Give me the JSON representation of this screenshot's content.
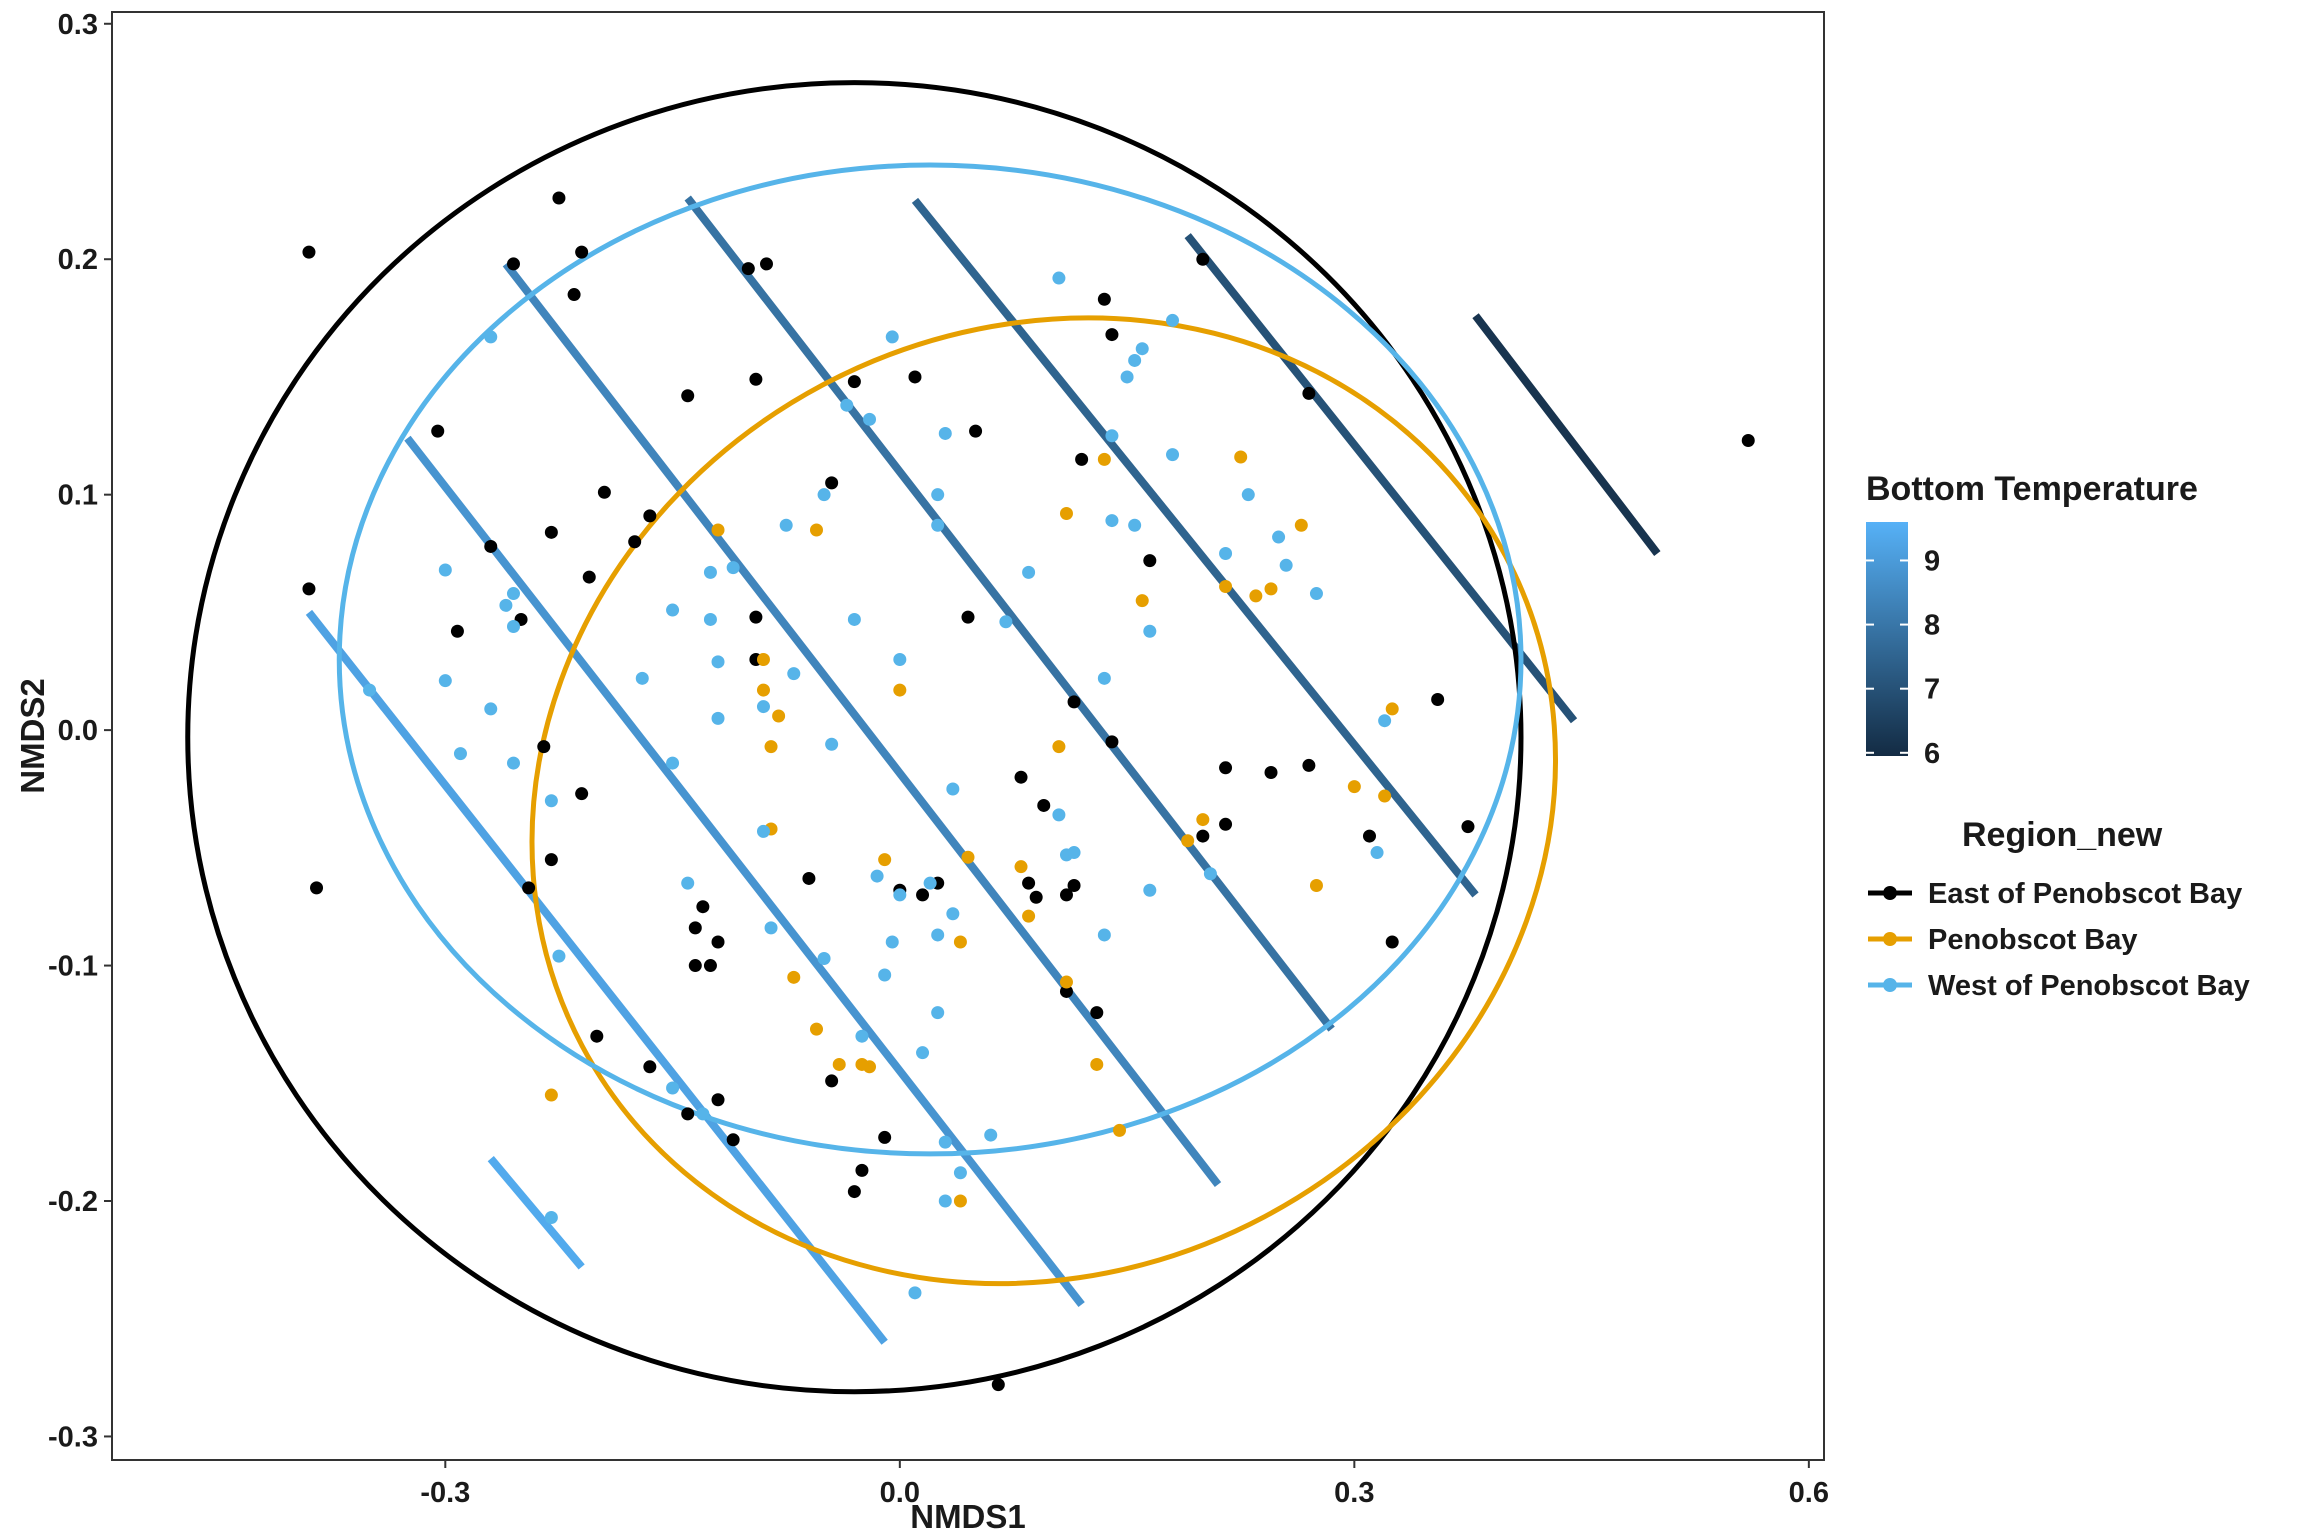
{
  "chart_data": {
    "type": "scatter",
    "xlabel": "NMDS1",
    "ylabel": "NMDS2",
    "xlim": [
      -0.52,
      0.61
    ],
    "ylim": [
      -0.31,
      0.305
    ],
    "x_ticks": [
      -0.3,
      0.0,
      0.3,
      0.6
    ],
    "x_tick_labels": [
      "-0.3",
      "0.0",
      "0.3",
      "0.6"
    ],
    "y_ticks": [
      -0.3,
      -0.2,
      -0.1,
      0.0,
      0.1,
      0.2,
      0.3
    ],
    "y_tick_labels": [
      "-0.3",
      "-0.2",
      "-0.1",
      "0.0",
      "0.1",
      "0.2",
      "0.3"
    ],
    "grid": false,
    "legend_position": "right",
    "series": [
      {
        "name": "East of Penobscot Bay",
        "color": "#000000",
        "points": [
          [
            -0.39,
            0.203
          ],
          [
            -0.225,
            0.226
          ],
          [
            -0.21,
            0.203
          ],
          [
            -0.255,
            0.198
          ],
          [
            -0.215,
            0.185
          ],
          [
            -0.1,
            0.196
          ],
          [
            -0.088,
            0.198
          ],
          [
            -0.14,
            0.142
          ],
          [
            -0.095,
            0.149
          ],
          [
            -0.03,
            0.148
          ],
          [
            0.01,
            0.15
          ],
          [
            0.05,
            0.127
          ],
          [
            0.12,
            0.115
          ],
          [
            0.135,
            0.183
          ],
          [
            0.14,
            0.168
          ],
          [
            0.2,
            0.2
          ],
          [
            0.27,
            0.143
          ],
          [
            0.56,
            0.123
          ],
          [
            -0.305,
            0.127
          ],
          [
            -0.195,
            0.101
          ],
          [
            -0.23,
            0.084
          ],
          [
            -0.165,
            0.091
          ],
          [
            -0.175,
            0.08
          ],
          [
            -0.27,
            0.078
          ],
          [
            -0.205,
            0.065
          ],
          [
            -0.25,
            0.047
          ],
          [
            -0.39,
            0.06
          ],
          [
            -0.292,
            0.042
          ],
          [
            -0.045,
            0.105
          ],
          [
            -0.095,
            0.048
          ],
          [
            0.045,
            0.048
          ],
          [
            0.165,
            0.072
          ],
          [
            -0.095,
            0.03
          ],
          [
            0.115,
            0.012
          ],
          [
            0.14,
            -0.005
          ],
          [
            0.355,
            0.013
          ],
          [
            -0.235,
            -0.007
          ],
          [
            -0.21,
            -0.027
          ],
          [
            -0.23,
            -0.055
          ],
          [
            -0.245,
            -0.067
          ],
          [
            -0.385,
            -0.067
          ],
          [
            0.08,
            -0.02
          ],
          [
            0.095,
            -0.032
          ],
          [
            0.2,
            -0.045
          ],
          [
            0.215,
            -0.04
          ],
          [
            0.215,
            -0.016
          ],
          [
            0.245,
            -0.018
          ],
          [
            0.27,
            -0.015
          ],
          [
            0.31,
            -0.045
          ],
          [
            0.375,
            -0.041
          ],
          [
            -0.06,
            -0.063
          ],
          [
            0.0,
            -0.068
          ],
          [
            0.015,
            -0.07
          ],
          [
            0.025,
            -0.065
          ],
          [
            0.085,
            -0.065
          ],
          [
            0.09,
            -0.071
          ],
          [
            0.11,
            -0.07
          ],
          [
            0.115,
            -0.066
          ],
          [
            -0.13,
            -0.075
          ],
          [
            -0.135,
            -0.084
          ],
          [
            -0.12,
            -0.09
          ],
          [
            -0.125,
            -0.1
          ],
          [
            -0.135,
            -0.1
          ],
          [
            0.11,
            -0.111
          ],
          [
            0.13,
            -0.12
          ],
          [
            0.325,
            -0.09
          ],
          [
            -0.2,
            -0.13
          ],
          [
            -0.165,
            -0.143
          ],
          [
            -0.14,
            -0.163
          ],
          [
            -0.12,
            -0.157
          ],
          [
            -0.11,
            -0.174
          ],
          [
            -0.045,
            -0.149
          ],
          [
            -0.01,
            -0.173
          ],
          [
            -0.025,
            -0.187
          ],
          [
            -0.03,
            -0.196
          ],
          [
            0.065,
            -0.278
          ]
        ]
      },
      {
        "name": "Penobscot Bay",
        "color": "#E69F00",
        "points": [
          [
            -0.12,
            0.085
          ],
          [
            -0.055,
            0.085
          ],
          [
            0.11,
            0.092
          ],
          [
            0.135,
            0.115
          ],
          [
            0.225,
            0.116
          ],
          [
            0.265,
            0.087
          ],
          [
            0.215,
            0.061
          ],
          [
            0.235,
            0.057
          ],
          [
            0.245,
            0.06
          ],
          [
            0.16,
            0.055
          ],
          [
            0.325,
            0.009
          ],
          [
            0.0,
            0.017
          ],
          [
            -0.09,
            0.017
          ],
          [
            -0.09,
            0.03
          ],
          [
            -0.08,
            0.006
          ],
          [
            -0.085,
            -0.007
          ],
          [
            0.105,
            -0.007
          ],
          [
            -0.085,
            -0.042
          ],
          [
            0.045,
            -0.054
          ],
          [
            0.08,
            -0.058
          ],
          [
            -0.01,
            -0.055
          ],
          [
            0.19,
            -0.047
          ],
          [
            0.2,
            -0.038
          ],
          [
            0.3,
            -0.024
          ],
          [
            0.32,
            -0.028
          ],
          [
            0.275,
            -0.066
          ],
          [
            0.085,
            -0.079
          ],
          [
            0.04,
            -0.09
          ],
          [
            -0.07,
            -0.105
          ],
          [
            -0.055,
            -0.127
          ],
          [
            0.11,
            -0.107
          ],
          [
            0.13,
            -0.142
          ],
          [
            0.145,
            -0.17
          ],
          [
            -0.02,
            -0.143
          ],
          [
            -0.025,
            -0.142
          ],
          [
            -0.04,
            -0.142
          ],
          [
            -0.23,
            -0.155
          ],
          [
            0.04,
            -0.2
          ]
        ]
      },
      {
        "name": "West of Penobscot Bay",
        "color": "#56B4E9",
        "points": [
          [
            -0.27,
            0.167
          ],
          [
            0.105,
            0.192
          ],
          [
            0.18,
            0.174
          ],
          [
            0.16,
            0.162
          ],
          [
            0.155,
            0.157
          ],
          [
            0.15,
            0.15
          ],
          [
            -0.005,
            0.167
          ],
          [
            -0.035,
            0.138
          ],
          [
            -0.02,
            0.132
          ],
          [
            0.03,
            0.126
          ],
          [
            0.14,
            0.125
          ],
          [
            0.18,
            0.117
          ],
          [
            -0.05,
            0.1
          ],
          [
            0.025,
            0.1
          ],
          [
            -0.075,
            0.087
          ],
          [
            0.025,
            0.087
          ],
          [
            0.14,
            0.089
          ],
          [
            0.155,
            0.087
          ],
          [
            0.23,
            0.1
          ],
          [
            0.25,
            0.082
          ],
          [
            0.255,
            0.07
          ],
          [
            0.215,
            0.075
          ],
          [
            0.275,
            0.058
          ],
          [
            0.085,
            0.067
          ],
          [
            -0.125,
            0.067
          ],
          [
            -0.11,
            0.069
          ],
          [
            -0.3,
            0.068
          ],
          [
            -0.255,
            0.058
          ],
          [
            -0.26,
            0.053
          ],
          [
            -0.15,
            0.051
          ],
          [
            -0.125,
            0.047
          ],
          [
            -0.255,
            0.044
          ],
          [
            -0.03,
            0.047
          ],
          [
            0.07,
            0.046
          ],
          [
            0.165,
            0.042
          ],
          [
            0.135,
            0.022
          ],
          [
            -0.12,
            0.029
          ],
          [
            -0.07,
            0.024
          ],
          [
            -0.17,
            0.022
          ],
          [
            0.0,
            0.03
          ],
          [
            -0.3,
            0.021
          ],
          [
            -0.35,
            0.017
          ],
          [
            -0.27,
            0.009
          ],
          [
            -0.09,
            0.01
          ],
          [
            -0.12,
            0.005
          ],
          [
            -0.29,
            -0.01
          ],
          [
            -0.255,
            -0.014
          ],
          [
            -0.15,
            -0.014
          ],
          [
            -0.045,
            -0.006
          ],
          [
            0.035,
            -0.025
          ],
          [
            0.32,
            0.004
          ],
          [
            -0.23,
            -0.03
          ],
          [
            -0.09,
            -0.043
          ],
          [
            0.105,
            -0.036
          ],
          [
            0.11,
            -0.053
          ],
          [
            0.115,
            -0.052
          ],
          [
            0.205,
            -0.061
          ],
          [
            0.165,
            -0.068
          ],
          [
            0.315,
            -0.052
          ],
          [
            -0.015,
            -0.062
          ],
          [
            0.0,
            -0.07
          ],
          [
            0.02,
            -0.065
          ],
          [
            0.035,
            -0.078
          ],
          [
            -0.14,
            -0.065
          ],
          [
            -0.085,
            -0.084
          ],
          [
            -0.05,
            -0.097
          ],
          [
            -0.005,
            -0.09
          ],
          [
            0.025,
            -0.087
          ],
          [
            -0.01,
            -0.104
          ],
          [
            0.135,
            -0.087
          ],
          [
            -0.225,
            -0.096
          ],
          [
            0.025,
            -0.12
          ],
          [
            -0.025,
            -0.13
          ],
          [
            0.015,
            -0.137
          ],
          [
            -0.15,
            -0.152
          ],
          [
            -0.13,
            -0.163
          ],
          [
            0.03,
            -0.175
          ],
          [
            0.06,
            -0.172
          ],
          [
            0.04,
            -0.188
          ],
          [
            0.03,
            -0.2
          ],
          [
            -0.23,
            -0.207
          ],
          [
            0.01,
            -0.239
          ]
        ]
      }
    ],
    "ellipses": [
      {
        "series": "East of Penobscot Bay",
        "color": "#000000",
        "cx": -0.03,
        "cy": -0.003,
        "rx": 0.44,
        "ry": 0.278
      },
      {
        "series": "Penobscot Bay",
        "color": "#E69F00",
        "cx": 0.095,
        "cy": -0.03,
        "rx": 0.345,
        "ry": 0.2,
        "rotate_deg": -28
      },
      {
        "series": "West of Penobscot Bay",
        "color": "#56B4E9",
        "cx": 0.02,
        "cy": 0.03,
        "rx": 0.39,
        "ry": 0.21,
        "rotate_deg": 0
      }
    ],
    "contours": [
      {
        "temp": 9.4,
        "x1": -0.27,
        "y1": -0.182,
        "x2": -0.21,
        "y2": -0.228
      },
      {
        "temp": 9.2,
        "x1": -0.39,
        "y1": 0.05,
        "x2": -0.01,
        "y2": -0.26
      },
      {
        "temp": 8.8,
        "x1": -0.325,
        "y1": 0.124,
        "x2": 0.12,
        "y2": -0.244
      },
      {
        "temp": 8.4,
        "x1": -0.26,
        "y1": 0.198,
        "x2": 0.21,
        "y2": -0.193
      },
      {
        "temp": 7.9,
        "x1": -0.14,
        "y1": 0.226,
        "x2": 0.285,
        "y2": -0.127
      },
      {
        "temp": 7.5,
        "x1": 0.01,
        "y1": 0.225,
        "x2": 0.38,
        "y2": -0.07
      },
      {
        "temp": 7.0,
        "x1": 0.19,
        "y1": 0.21,
        "x2": 0.445,
        "y2": 0.004
      },
      {
        "temp": 6.2,
        "x1": 0.38,
        "y1": 0.176,
        "x2": 0.5,
        "y2": 0.075
      }
    ],
    "colorbar": {
      "title": "Bottom Temperature",
      "min": 5.95,
      "max": 9.6,
      "ticks": [
        6,
        7,
        8,
        9
      ],
      "tick_labels": [
        "6",
        "7",
        "8",
        "9"
      ],
      "low_color": "#132B43",
      "high_color": "#56B1F7"
    },
    "legend": {
      "title": "Region_new",
      "items": [
        "East of Penobscot Bay",
        "Penobscot Bay",
        "West of Penobscot Bay"
      ]
    }
  }
}
